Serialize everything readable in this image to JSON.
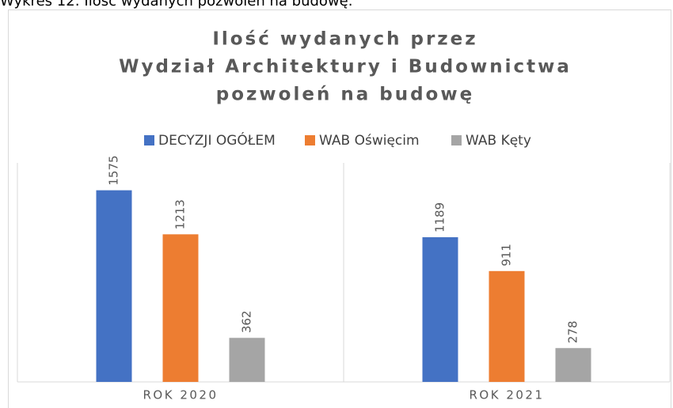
{
  "caption": "Wykres 12: Ilość wydanych pozwoleń na budowę.",
  "chart_data": {
    "type": "bar",
    "title": [
      "Ilość wydanych przez",
      "Wydział Architektury i Budownictwa",
      "pozwoleń na budowę"
    ],
    "categories": [
      "ROK 2020",
      "ROK 2021"
    ],
    "series": [
      {
        "name": "DECYZJI OGÓŁEM",
        "color": "#4472c4",
        "values": [
          1575,
          1189
        ]
      },
      {
        "name": "WAB Oświęcim",
        "color": "#ed7d31",
        "values": [
          1213,
          911
        ]
      },
      {
        "name": "WAB Kęty",
        "color": "#a5a5a5",
        "values": [
          362,
          278
        ]
      }
    ],
    "ylim": [
      0,
      1800
    ],
    "legend": "top"
  }
}
